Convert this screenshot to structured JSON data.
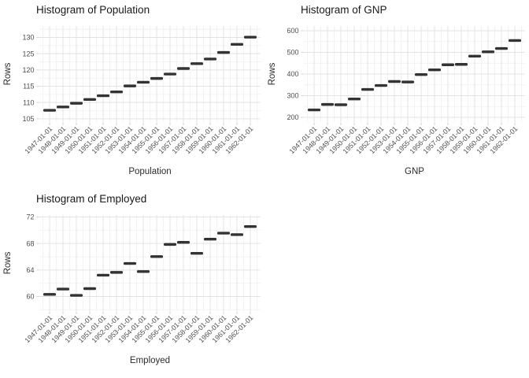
{
  "styles": {
    "background": "#FFFFFF",
    "title_color": "#1A1A1A",
    "axis_title_color": "#2B2B2B",
    "tick_label_color": "#4D4D4D",
    "grid_major_color": "#E3E3E3",
    "grid_minor_color": "#F1F1F1",
    "axis_tick_color": "#D0D0D0",
    "dash_color": "#333333"
  },
  "chart_data": [
    {
      "id": "population",
      "type": "scatter",
      "marker": "horizontal-dash",
      "title": "Histogram of Population",
      "xlabel": "Population",
      "ylabel": "Rows",
      "categories": [
        "1947-01-01",
        "1948-01-01",
        "1949-01-01",
        "1950-01-01",
        "1951-01-01",
        "1952-01-01",
        "1953-01-01",
        "1954-01-01",
        "1955-01-01",
        "1956-01-01",
        "1957-01-01",
        "1958-01-01",
        "1959-01-01",
        "1960-01-01",
        "1961-01-01",
        "1962-01-01"
      ],
      "values": [
        107.608,
        108.632,
        109.773,
        110.929,
        112.075,
        113.27,
        115.094,
        116.219,
        117.388,
        118.734,
        120.445,
        121.95,
        123.366,
        125.368,
        127.852,
        130.081
      ],
      "y_ticks": [
        105,
        110,
        115,
        120,
        125,
        130
      ],
      "ylim": [
        104.0,
        133.5
      ],
      "x_tick_rotation": 45,
      "grid": "major-and-minor",
      "legend": "none"
    },
    {
      "id": "gnp",
      "type": "scatter",
      "marker": "horizontal-dash",
      "title": "Histogram of GNP",
      "xlabel": "GNP",
      "ylabel": "Rows",
      "categories": [
        "1947-01-01",
        "1948-01-01",
        "1949-01-01",
        "1950-01-01",
        "1951-01-01",
        "1952-01-01",
        "1953-01-01",
        "1954-01-01",
        "1955-01-01",
        "1956-01-01",
        "1957-01-01",
        "1958-01-01",
        "1959-01-01",
        "1960-01-01",
        "1961-01-01",
        "1962-01-01"
      ],
      "values": [
        234.289,
        259.426,
        258.054,
        284.599,
        328.975,
        346.999,
        365.385,
        363.112,
        397.469,
        419.18,
        442.769,
        444.546,
        482.704,
        502.601,
        518.173,
        554.894
      ],
      "y_ticks": [
        200,
        300,
        400,
        500,
        600
      ],
      "ylim": [
        178.0,
        622.0
      ],
      "x_tick_rotation": 45,
      "grid": "major-and-minor",
      "legend": "none"
    },
    {
      "id": "employed",
      "type": "scatter",
      "marker": "horizontal-dash",
      "title": "Histogram of Employed",
      "xlabel": "Employed",
      "ylabel": "Rows",
      "categories": [
        "1947-01-01",
        "1948-01-01",
        "1949-01-01",
        "1950-01-01",
        "1951-01-01",
        "1952-01-01",
        "1953-01-01",
        "1954-01-01",
        "1955-01-01",
        "1956-01-01",
        "1957-01-01",
        "1958-01-01",
        "1959-01-01",
        "1960-01-01",
        "1961-01-01",
        "1962-01-01"
      ],
      "values": [
        60.323,
        61.122,
        60.171,
        61.187,
        63.221,
        63.639,
        64.989,
        63.761,
        66.019,
        67.857,
        68.169,
        66.513,
        68.655,
        69.564,
        69.331,
        70.551
      ],
      "y_ticks": [
        60,
        64,
        68,
        72
      ],
      "ylim": [
        57.8,
        72.3
      ],
      "x_tick_rotation": 45,
      "grid": "major-and-minor",
      "legend": "none"
    }
  ]
}
